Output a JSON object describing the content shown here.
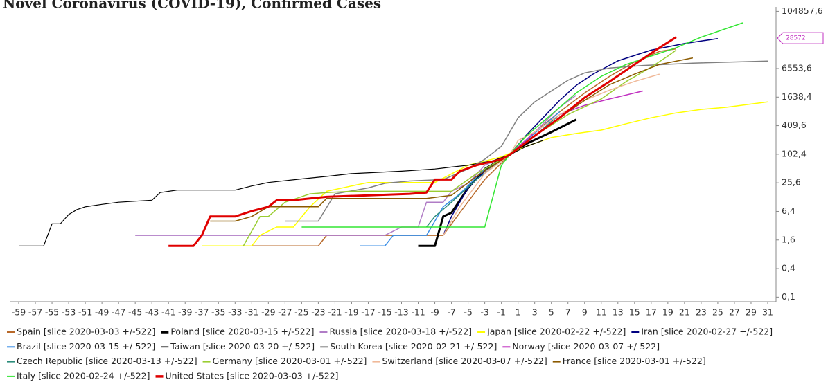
{
  "chart_data": {
    "type": "line",
    "title": "Novel Coronavirus (COVID-19), Confirmed Cases",
    "log_scale": "y",
    "log_base": 4,
    "grid": false,
    "legend": "bottom",
    "xlim": [
      -60,
      32
    ],
    "ylim": [
      0.08,
      130000
    ],
    "xticks": [
      -59,
      -57,
      -55,
      -53,
      -51,
      -49,
      -47,
      -45,
      -43,
      -41,
      -39,
      -37,
      -35,
      -33,
      -31,
      -29,
      -27,
      -25,
      -23,
      -21,
      -19,
      -17,
      -15,
      -13,
      -11,
      -9,
      -7,
      -5,
      -3,
      -1,
      1,
      3,
      5,
      7,
      9,
      11,
      13,
      15,
      17,
      19,
      21,
      23,
      25,
      27,
      29,
      31
    ],
    "yticks": [
      {
        "value": 0.1,
        "label": "0,1"
      },
      {
        "value": 0.4,
        "label": "0,4"
      },
      {
        "value": 1.6,
        "label": "1,6"
      },
      {
        "value": 6.4,
        "label": "6,4"
      },
      {
        "value": 25.6,
        "label": "25,6"
      },
      {
        "value": 102.4,
        "label": "102,4"
      },
      {
        "value": 409.6,
        "label": "409,6"
      },
      {
        "value": 1638.4,
        "label": "1638,4"
      },
      {
        "value": 6553.6,
        "label": "6553,6"
      },
      {
        "value": 104857.6,
        "label": "104857,6"
      }
    ],
    "marker_label": 28572,
    "series": [
      {
        "name": "Spain [slice 2020-03-03 +/-522]",
        "color": "#b8692a",
        "width": 1.5,
        "x": [
          -33,
          -23,
          -22,
          -10,
          -8,
          -6,
          -3,
          0,
          3,
          6,
          9,
          12,
          15,
          18,
          20
        ],
        "values": [
          1.2,
          1.2,
          2,
          2,
          2,
          6,
          30,
          100,
          300,
          800,
          2000,
          4500,
          9000,
          15000,
          17000
        ]
      },
      {
        "name": "Poland [slice 2020-03-15 +/-522]",
        "color": "#000000",
        "width": 3,
        "x": [
          -11,
          -9,
          -8,
          -7,
          -5,
          -3,
          0,
          2,
          5,
          8
        ],
        "values": [
          1.2,
          1.2,
          5,
          6,
          20,
          50,
          100,
          170,
          300,
          550
        ]
      },
      {
        "name": "Russia [slice 2020-03-18 +/-522]",
        "color": "#b07cc6",
        "width": 1.5,
        "x": [
          -45,
          -15,
          -13,
          -11,
          -10,
          -8,
          -7,
          -5,
          -3,
          0,
          3,
          6,
          8
        ],
        "values": [
          2,
          2,
          3,
          3,
          10,
          10,
          17,
          25,
          60,
          100,
          300,
          1000,
          1800
        ]
      },
      {
        "name": "Japan [slice 2020-02-22 +/-522]",
        "color": "#ffff00",
        "width": 1.5,
        "x": [
          -37,
          -31,
          -30,
          -28,
          -26,
          -24,
          -22,
          -19,
          -17,
          -9,
          -5,
          -1,
          2,
          5,
          8,
          11,
          14,
          17,
          20,
          23,
          26,
          31
        ],
        "values": [
          1.2,
          1.2,
          2,
          3,
          3,
          8,
          17,
          22,
          26,
          26,
          60,
          90,
          150,
          230,
          280,
          330,
          450,
          600,
          760,
          900,
          1000,
          1300
        ]
      },
      {
        "name": "Iran [slice 2020-02-27 +/-522]",
        "color": "#000080",
        "width": 1.5,
        "x": [
          -8,
          -7,
          -5,
          -3,
          0,
          2,
          4,
          6,
          8,
          10,
          13,
          17,
          21,
          25
        ],
        "values": [
          2,
          5,
          20,
          45,
          100,
          260,
          600,
          1400,
          2900,
          5000,
          9500,
          16000,
          22000,
          28000
        ]
      },
      {
        "name": "Brazil [slice 2020-03-15 +/-522]",
        "color": "#3a8ee6",
        "width": 1.5,
        "x": [
          -18,
          -15,
          -14,
          -10,
          -9,
          -8,
          -6,
          -3,
          0,
          2,
          4,
          6
        ],
        "values": [
          1.2,
          1.2,
          2,
          2,
          4,
          8,
          15,
          50,
          100,
          200,
          400,
          800
        ]
      },
      {
        "name": "Taiwan [slice 2020-03-20 +/-522]",
        "color": "#000000",
        "width": 1.2,
        "x": [
          -59,
          -56,
          -55,
          -54,
          -53,
          -52,
          -51,
          -49,
          -47,
          -43,
          -42,
          -40,
          -33,
          -31,
          -29,
          -25,
          -22,
          -19,
          -13,
          -9,
          -7,
          -5,
          -2,
          0,
          2,
          4
        ],
        "values": [
          1.2,
          1.2,
          3.5,
          3.5,
          5.5,
          7,
          8,
          9,
          10,
          11,
          16,
          18,
          18,
          22,
          26,
          31,
          35,
          40,
          45,
          50,
          55,
          60,
          75,
          100,
          150,
          200
        ]
      },
      {
        "name": "South Korea [slice 2020-02-21 +/-522]",
        "color": "#808080",
        "width": 1.5,
        "x": [
          -27,
          -23,
          -21,
          -17,
          -15,
          -12,
          -8,
          -5,
          -3,
          -1,
          1,
          3,
          5,
          7,
          9,
          12,
          16,
          22,
          31
        ],
        "values": [
          4,
          4,
          15,
          20,
          25,
          28,
          30,
          50,
          80,
          150,
          600,
          1300,
          2200,
          3700,
          5300,
          6700,
          7600,
          8500,
          9400
        ]
      },
      {
        "name": "Norway [slice 2020-03-07 +/-522]",
        "color": "#c030c0",
        "width": 1.5,
        "x": [
          -4,
          0,
          3,
          6,
          9,
          12,
          16
        ],
        "values": [
          30,
          100,
          300,
          700,
          1100,
          1500,
          2200
        ]
      },
      {
        "name": "Czech Republic [slice 2020-03-13 +/-522]",
        "color": "#2a8c7a",
        "width": 1.5,
        "x": [
          -10,
          -9,
          -7,
          -4,
          0,
          3,
          6
        ],
        "values": [
          3,
          5,
          10,
          30,
          100,
          250,
          700
        ]
      },
      {
        "name": "Germany [slice 2020-03-01 +/-522]",
        "color": "#9acd32",
        "width": 1.5,
        "x": [
          -32,
          -30,
          -29,
          -27,
          -24,
          -22,
          -19,
          -7,
          -4,
          0,
          3,
          7,
          11,
          14,
          17,
          19,
          20
        ],
        "values": [
          1.2,
          5,
          5,
          10,
          15,
          16,
          17,
          17,
          40,
          100,
          250,
          700,
          1500,
          3500,
          7000,
          12000,
          16000
        ]
      },
      {
        "name": "Switzerland [slice 2020-03-07 +/-522]",
        "color": "#f0b999",
        "width": 1.5,
        "x": [
          -8,
          -6,
          -3,
          0,
          1,
          3,
          6,
          9,
          12,
          15,
          18
        ],
        "values": [
          2,
          8,
          40,
          100,
          200,
          300,
          700,
          1400,
          2300,
          3500,
          5000
        ]
      },
      {
        "name": "France [slice 2020-03-01 +/-522]",
        "color": "#8b5a00",
        "width": 1.5,
        "x": [
          -36,
          -33,
          -31,
          -29,
          -23,
          -22,
          -10,
          -7,
          -4,
          0,
          3,
          6,
          9,
          12,
          15,
          18,
          22
        ],
        "values": [
          4,
          4,
          5,
          8,
          8,
          12,
          12,
          14,
          35,
          100,
          250,
          600,
          1400,
          3000,
          5000,
          8000,
          11000
        ]
      },
      {
        "name": "Italy [slice 2020-02-24 +/-522]",
        "color": "#33e633",
        "width": 1.5,
        "x": [
          -25,
          -3,
          -1,
          0,
          2,
          5,
          8,
          11,
          14,
          17,
          20,
          23,
          28
        ],
        "values": [
          3,
          3,
          60,
          100,
          250,
          700,
          2000,
          4500,
          8000,
          12000,
          18000,
          30000,
          60000
        ]
      },
      {
        "name": "United States [slice 2020-03-03 +/-522]",
        "color": "#e00000",
        "width": 3,
        "x": [
          -41,
          -38,
          -37,
          -36,
          -33,
          -31,
          -29,
          -28,
          -26,
          -24,
          -22,
          -12,
          -10,
          -9,
          -7,
          -6,
          -4,
          -1,
          0,
          3,
          6,
          9,
          12,
          15,
          18,
          20
        ],
        "values": [
          1.2,
          1.2,
          2,
          5,
          5,
          6.5,
          8,
          11,
          11,
          12,
          13,
          15,
          16,
          30,
          30,
          45,
          60,
          80,
          100,
          250,
          600,
          1600,
          3500,
          8000,
          18000,
          30000
        ]
      }
    ]
  }
}
